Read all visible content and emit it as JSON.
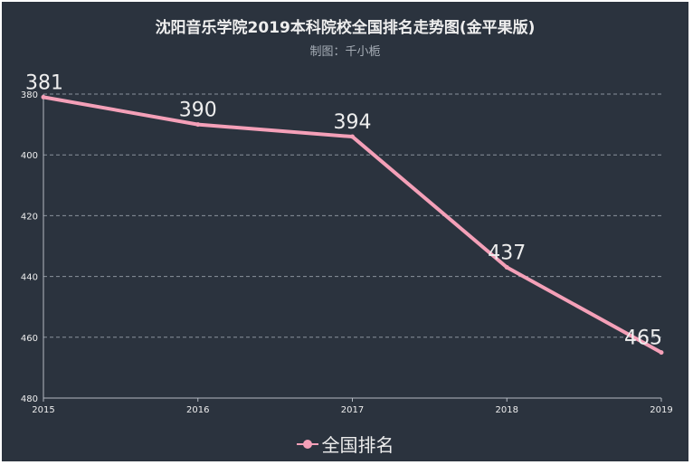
{
  "chart_data": {
    "type": "line",
    "title": "沈阳音乐学院2019本科院校全国排名走势图(金平果版)",
    "subtitle": "制图：千小栀",
    "x": [
      "2015",
      "2016",
      "2017",
      "2018",
      "2019"
    ],
    "series": [
      {
        "name": "全国排名",
        "values": [
          381,
          390,
          394,
          437,
          465
        ]
      }
    ],
    "ylim": [
      380,
      480
    ],
    "y_inverse": true,
    "yticks": [
      380,
      400,
      420,
      440,
      460,
      480
    ],
    "grid": "horizontal dashed",
    "legend_position": "bottom-center",
    "colors": {
      "background": "#2b333e",
      "line": "#f4a0b8",
      "text": "#eeeeee",
      "axis": "#b4bac2",
      "grid": "#8a929c"
    }
  }
}
